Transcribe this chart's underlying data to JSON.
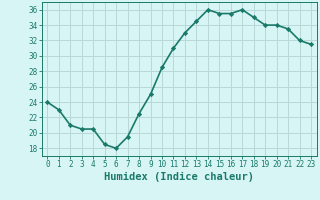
{
  "x": [
    0,
    1,
    2,
    3,
    4,
    5,
    6,
    7,
    8,
    9,
    10,
    11,
    12,
    13,
    14,
    15,
    16,
    17,
    18,
    19,
    20,
    21,
    22,
    23
  ],
  "y": [
    24,
    23,
    21,
    20.5,
    20.5,
    18.5,
    18,
    19.5,
    22.5,
    25,
    28.5,
    31,
    33,
    34.5,
    36,
    35.5,
    35.5,
    36,
    35,
    34,
    34,
    33.5,
    32,
    31.5
  ],
  "line_color": "#1a7a6a",
  "marker": "D",
  "marker_size": 2.2,
  "bg_color": "#d8f5f5",
  "grid_color": "#b8d8d8",
  "xlabel": "Humidex (Indice chaleur)",
  "xlim": [
    -0.5,
    23.5
  ],
  "ylim": [
    17,
    37
  ],
  "yticks": [
    18,
    20,
    22,
    24,
    26,
    28,
    30,
    32,
    34,
    36
  ],
  "xticks": [
    0,
    1,
    2,
    3,
    4,
    5,
    6,
    7,
    8,
    9,
    10,
    11,
    12,
    13,
    14,
    15,
    16,
    17,
    18,
    19,
    20,
    21,
    22,
    23
  ],
  "tick_fontsize": 5.5,
  "xlabel_fontsize": 7.5,
  "linewidth": 1.2
}
